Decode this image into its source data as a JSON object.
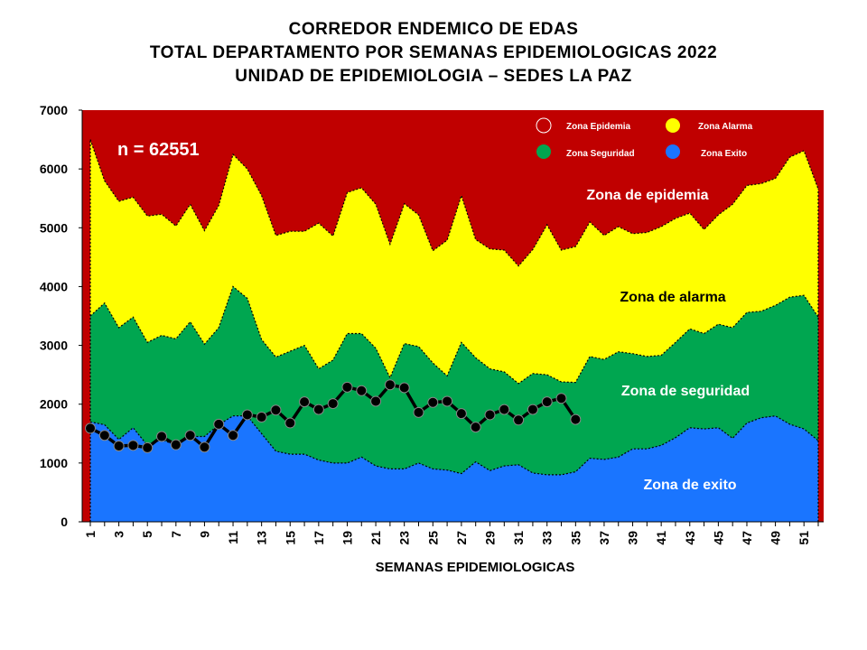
{
  "chart_data": {
    "type": "area",
    "title_lines": [
      "CORREDOR  ENDEMICO  DE  EDAS",
      "TOTAL  DEPARTAMENTO  POR  SEMANAS  EPIDEMIOLOGICAS  2022",
      "UNIDAD  DE  EPIDEMIOLOGIA  –  SEDES  LA  PAZ"
    ],
    "xlabel": "SEMANAS EPIDEMIOLOGICAS",
    "ylabel": "",
    "ylim": [
      0,
      7000
    ],
    "yticks": [
      0,
      1000,
      2000,
      3000,
      4000,
      5000,
      6000,
      7000
    ],
    "xlim": [
      1,
      52
    ],
    "xticks": [
      1,
      3,
      5,
      7,
      9,
      11,
      13,
      15,
      17,
      19,
      21,
      23,
      25,
      27,
      29,
      31,
      33,
      35,
      37,
      39,
      41,
      43,
      45,
      47,
      49,
      51
    ],
    "annotation": "n =  62551",
    "legend": [
      {
        "name": "Zona Epidemia",
        "color": "#c00000"
      },
      {
        "name": "Zona Alarma",
        "color": "#ffff00"
      },
      {
        "name": "Zona Seguridad",
        "color": "#00a650"
      },
      {
        "name": "Zona Exito",
        "color": "#1a75ff"
      }
    ],
    "zone_labels": {
      "epidemia": "Zona de epidemia",
      "alarma": "Zona de alarma",
      "seguridad": "Zona de  seguridad",
      "exito": "Zona de exito"
    },
    "colors": {
      "epidemia": "#c00000",
      "alarma": "#ffff00",
      "seguridad": "#00a650",
      "exito": "#1a75ff",
      "line": "#000000"
    },
    "weeks": [
      1,
      2,
      3,
      4,
      5,
      6,
      7,
      8,
      9,
      10,
      11,
      12,
      13,
      14,
      15,
      16,
      17,
      18,
      19,
      20,
      21,
      22,
      23,
      24,
      25,
      26,
      27,
      28,
      29,
      30,
      31,
      32,
      33,
      34,
      35,
      36,
      37,
      38,
      39,
      40,
      41,
      42,
      43,
      44,
      45,
      46,
      47,
      48,
      49,
      50,
      51,
      52
    ],
    "exito_upper": [
      1700,
      1650,
      1400,
      1600,
      1300,
      1400,
      1300,
      1450,
      1450,
      1650,
      1800,
      1800,
      1500,
      1200,
      1150,
      1150,
      1050,
      1000,
      1000,
      1100,
      950,
      900,
      900,
      1000,
      900,
      880,
      820,
      1020,
      870,
      950,
      970,
      830,
      800,
      800,
      850,
      1080,
      1060,
      1100,
      1240,
      1240,
      1300,
      1430,
      1600,
      1580,
      1600,
      1420,
      1680,
      1770,
      1800,
      1660,
      1580,
      1380
    ],
    "seguridad_upper": [
      3500,
      3720,
      3300,
      3480,
      3050,
      3170,
      3110,
      3400,
      3020,
      3300,
      4000,
      3800,
      3100,
      2800,
      2900,
      3000,
      2600,
      2750,
      3200,
      3200,
      2950,
      2450,
      3030,
      2980,
      2700,
      2480,
      3050,
      2790,
      2600,
      2550,
      2350,
      2520,
      2500,
      2380,
      2370,
      2810,
      2760,
      2890,
      2860,
      2810,
      2830,
      3050,
      3280,
      3200,
      3360,
      3300,
      3560,
      3580,
      3680,
      3820,
      3850,
      3480
    ],
    "alarma_upper": [
      6500,
      5800,
      5450,
      5520,
      5200,
      5230,
      5030,
      5400,
      4950,
      5380,
      6250,
      6000,
      5550,
      4870,
      4940,
      4940,
      5080,
      4860,
      5600,
      5680,
      5400,
      4720,
      5410,
      5220,
      4610,
      4790,
      5550,
      4800,
      4640,
      4620,
      4350,
      4630,
      5050,
      4620,
      4680,
      5100,
      4870,
      5020,
      4900,
      4920,
      5020,
      5160,
      5250,
      4970,
      5220,
      5400,
      5720,
      5750,
      5840,
      6200,
      6310,
      5660
    ],
    "cases": [
      {
        "week": 1,
        "value": 1590
      },
      {
        "week": 2,
        "value": 1470
      },
      {
        "week": 3,
        "value": 1290
      },
      {
        "week": 4,
        "value": 1300
      },
      {
        "week": 5,
        "value": 1260
      },
      {
        "week": 6,
        "value": 1450
      },
      {
        "week": 7,
        "value": 1310
      },
      {
        "week": 8,
        "value": 1470
      },
      {
        "week": 9,
        "value": 1270
      },
      {
        "week": 10,
        "value": 1660
      },
      {
        "week": 11,
        "value": 1470
      },
      {
        "week": 12,
        "value": 1820
      },
      {
        "week": 13,
        "value": 1780
      },
      {
        "week": 14,
        "value": 1900
      },
      {
        "week": 15,
        "value": 1680
      },
      {
        "week": 16,
        "value": 2040
      },
      {
        "week": 17,
        "value": 1910
      },
      {
        "week": 18,
        "value": 2010
      },
      {
        "week": 19,
        "value": 2290
      },
      {
        "week": 20,
        "value": 2230
      },
      {
        "week": 21,
        "value": 2050
      },
      {
        "week": 22,
        "value": 2330
      },
      {
        "week": 23,
        "value": 2280
      },
      {
        "week": 24,
        "value": 1860
      },
      {
        "week": 25,
        "value": 2030
      },
      {
        "week": 26,
        "value": 2050
      },
      {
        "week": 27,
        "value": 1840
      },
      {
        "week": 28,
        "value": 1610
      },
      {
        "week": 29,
        "value": 1820
      },
      {
        "week": 30,
        "value": 1910
      },
      {
        "week": 31,
        "value": 1730
      },
      {
        "week": 32,
        "value": 1910
      },
      {
        "week": 33,
        "value": 2040
      },
      {
        "week": 34,
        "value": 2100
      },
      {
        "week": 35,
        "value": 1740
      }
    ]
  }
}
